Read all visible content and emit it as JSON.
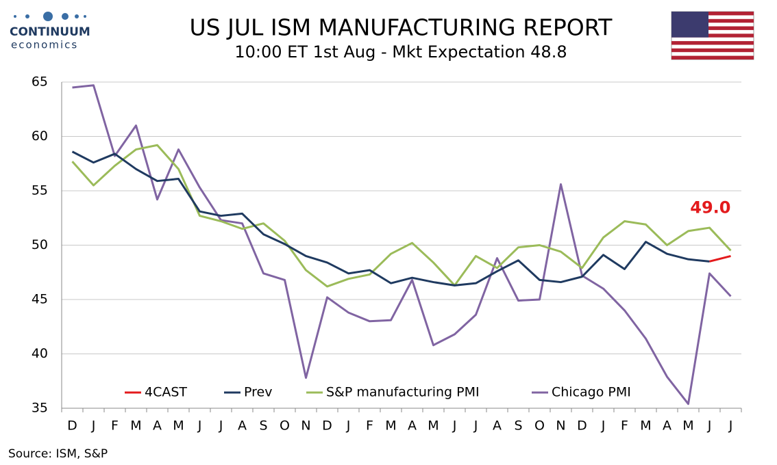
{
  "logo": {
    "name": "CONTINUUM",
    "tagline": "economics"
  },
  "chart_data": {
    "type": "line",
    "title": "US JUL ISM MANUFACTURING REPORT",
    "subtitle": "10:00 ET 1st Aug - Mkt Expectation 48.8",
    "source": "Source: ISM, S&P",
    "categories": [
      "D",
      "J",
      "F",
      "M",
      "A",
      "M",
      "J",
      "J",
      "A",
      "S",
      "O",
      "N",
      "D",
      "J",
      "F",
      "M",
      "A",
      "M",
      "J",
      "J",
      "A",
      "S",
      "O",
      "N",
      "D",
      "J",
      "F",
      "M",
      "A",
      "M",
      "J",
      "J"
    ],
    "series": [
      {
        "name": "4CAST",
        "color": "#e31a1c",
        "values": [
          null,
          null,
          null,
          null,
          null,
          null,
          null,
          null,
          null,
          null,
          null,
          null,
          null,
          null,
          null,
          null,
          null,
          null,
          null,
          null,
          null,
          null,
          null,
          null,
          null,
          null,
          null,
          null,
          null,
          null,
          48.5,
          49.0
        ],
        "value_labels": [
          null,
          null,
          null,
          null,
          null,
          null,
          null,
          null,
          null,
          null,
          null,
          null,
          null,
          null,
          null,
          null,
          null,
          null,
          null,
          null,
          null,
          null,
          null,
          null,
          null,
          null,
          null,
          null,
          null,
          null,
          null,
          "49.0"
        ]
      },
      {
        "name": "Prev",
        "color": "#1f3a60",
        "values": [
          58.6,
          57.6,
          58.4,
          57.0,
          55.9,
          56.1,
          53.1,
          52.7,
          52.9,
          51.0,
          50.1,
          49.0,
          48.4,
          47.4,
          47.7,
          46.5,
          47.0,
          46.6,
          46.3,
          46.5,
          47.6,
          48.6,
          46.8,
          46.6,
          47.1,
          49.1,
          47.8,
          50.3,
          49.2,
          48.7,
          48.5,
          null
        ]
      },
      {
        "name": "S&P manufacturing PMI",
        "color": "#9bbb59",
        "values": [
          57.7,
          55.5,
          57.3,
          58.8,
          59.2,
          57.0,
          52.7,
          52.2,
          51.5,
          52.0,
          50.4,
          47.7,
          46.2,
          46.9,
          47.3,
          49.2,
          50.2,
          48.4,
          46.3,
          49.0,
          47.9,
          49.8,
          50.0,
          49.4,
          47.9,
          50.7,
          52.2,
          51.9,
          50.0,
          51.3,
          51.6,
          49.5
        ]
      },
      {
        "name": "Chicago PMI",
        "color": "#8064a2",
        "values": [
          64.5,
          64.7,
          58.2,
          61.0,
          54.2,
          58.8,
          55.3,
          52.3,
          52.0,
          47.4,
          46.8,
          37.8,
          45.2,
          43.8,
          43.0,
          43.1,
          46.8,
          40.8,
          41.8,
          43.6,
          48.8,
          44.9,
          45.0,
          55.6,
          47.2,
          46.0,
          44.0,
          41.4,
          37.9,
          35.4,
          47.4,
          45.3
        ]
      }
    ],
    "ylim": [
      35,
      65
    ],
    "yticks": [
      35,
      40,
      45,
      50,
      55,
      60,
      65
    ],
    "grid": true,
    "legend": "lower center"
  }
}
